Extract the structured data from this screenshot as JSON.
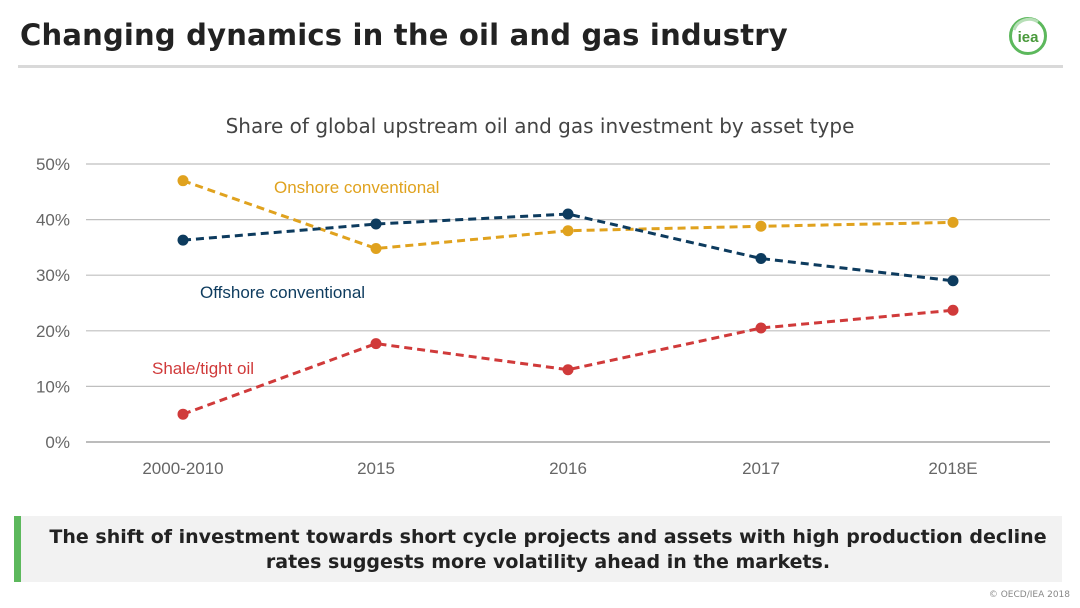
{
  "slide": {
    "title": "Changing dynamics in the oil and gas industry",
    "logo_text": "iea",
    "callout": "The shift of investment towards short cycle projects and assets with high production decline rates suggests more volatility ahead in the markets.",
    "copyright": "© OECD/IEA 2018"
  },
  "colors": {
    "onshore": "#E0A21E",
    "offshore": "#0D3B5E",
    "shale": "#D03A3A",
    "accent_green": "#5cb85c",
    "gridline": "#bfbfbf"
  },
  "chart_data": {
    "type": "line",
    "title": "Share of global upstream oil and gas investment by asset type",
    "xlabel": "",
    "ylabel": "",
    "categories": [
      "2000-2010",
      "2015",
      "2016",
      "2017",
      "2018E"
    ],
    "ylim": [
      0,
      50
    ],
    "yticks": [
      0,
      10,
      20,
      30,
      40,
      50
    ],
    "ytick_labels": [
      "0%",
      "10%",
      "20%",
      "30%",
      "40%",
      "50%"
    ],
    "grid": true,
    "line_style": "dashed",
    "series": [
      {
        "name": "Onshore conventional",
        "color_key": "onshore",
        "values": [
          47,
          34.8,
          38,
          38.8,
          39.5
        ]
      },
      {
        "name": "Offshore conventional",
        "color_key": "offshore",
        "values": [
          36.3,
          39.2,
          41,
          33,
          29
        ]
      },
      {
        "name": "Shale/tight oil",
        "color_key": "shale",
        "values": [
          5,
          17.7,
          13,
          20.5,
          23.7
        ]
      }
    ]
  }
}
